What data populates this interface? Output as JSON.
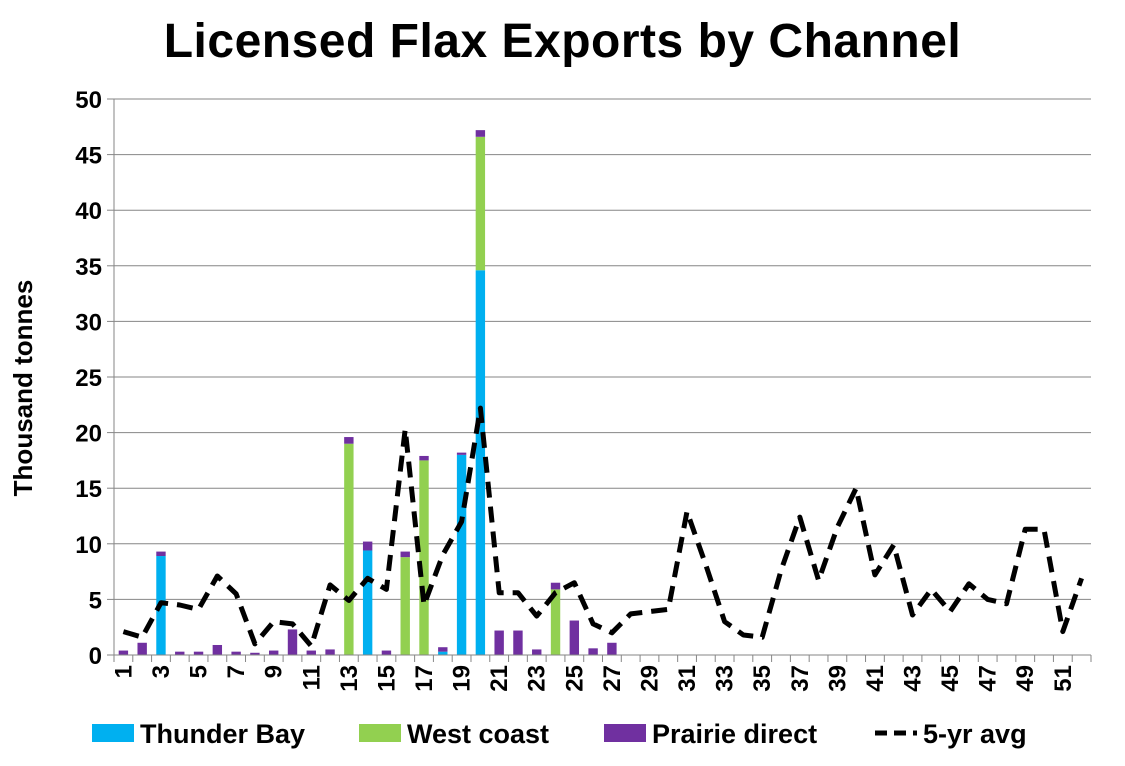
{
  "chart_data": {
    "type": "bar",
    "title": "Licensed Flax Exports by Channel",
    "xlabel": "",
    "ylabel": "Thousand tonnes",
    "ylim": [
      0,
      50
    ],
    "yticks": [
      0,
      5,
      10,
      15,
      20,
      25,
      30,
      35,
      40,
      45,
      50
    ],
    "grid": true,
    "legend_position": "bottom",
    "categories": [
      1,
      2,
      3,
      4,
      5,
      6,
      7,
      8,
      9,
      10,
      11,
      12,
      13,
      14,
      15,
      16,
      17,
      18,
      19,
      20,
      21,
      22,
      23,
      24,
      25,
      26,
      27,
      28,
      29,
      30,
      31,
      32,
      33,
      34,
      35,
      36,
      37,
      38,
      39,
      40,
      41,
      42,
      43,
      44,
      45,
      46,
      47,
      48,
      49,
      50,
      51,
      52
    ],
    "x_tick_labels": [
      "1",
      "3",
      "5",
      "7",
      "9",
      "11",
      "13",
      "15",
      "17",
      "19",
      "21",
      "23",
      "25",
      "27",
      "29",
      "31",
      "33",
      "35",
      "37",
      "39",
      "41",
      "43",
      "45",
      "47",
      "49",
      "51"
    ],
    "series": [
      {
        "name": "Thunder Bay",
        "type": "bar",
        "stack": "exports",
        "color": "#00B0F0",
        "values": [
          0,
          0,
          8.9,
          0,
          0,
          0,
          0,
          0,
          0,
          0,
          0,
          0,
          0,
          9.4,
          0,
          0,
          0,
          0.3,
          18.0,
          34.6,
          0,
          0,
          0,
          0,
          0,
          0,
          0,
          0,
          0,
          0,
          0,
          0,
          0,
          0,
          0,
          0,
          0,
          0,
          0,
          0,
          0,
          0,
          0,
          0,
          0,
          0,
          0,
          0,
          0,
          0,
          0,
          0
        ]
      },
      {
        "name": "West coast",
        "type": "bar",
        "stack": "exports",
        "color": "#92D050",
        "values": [
          0,
          0,
          0,
          0,
          0,
          0,
          0,
          0,
          0,
          0,
          0,
          0,
          19.0,
          0,
          0,
          8.8,
          17.5,
          0,
          0,
          12.0,
          0,
          0,
          0,
          5.9,
          0,
          0,
          0,
          0,
          0,
          0,
          0,
          0,
          0,
          0,
          0,
          0,
          0,
          0,
          0,
          0,
          0,
          0,
          0,
          0,
          0,
          0,
          0,
          0,
          0,
          0,
          0,
          0
        ]
      },
      {
        "name": "Prairie direct",
        "type": "bar",
        "stack": "exports",
        "color": "#7030A0",
        "values": [
          0.4,
          1.1,
          0.4,
          0.3,
          0.3,
          0.9,
          0.3,
          0.2,
          0.4,
          2.3,
          0.4,
          0.5,
          0.6,
          0.8,
          0.4,
          0.5,
          0.4,
          0.4,
          0.2,
          0.6,
          2.2,
          2.2,
          0.5,
          0.6,
          3.1,
          0.6,
          1.1,
          0,
          0,
          0,
          0,
          0,
          0,
          0,
          0,
          0,
          0,
          0,
          0,
          0,
          0,
          0,
          0,
          0,
          0,
          0,
          0,
          0,
          0,
          0,
          0,
          0
        ]
      },
      {
        "name": "5-yr avg",
        "type": "line",
        "style": "dashed",
        "color": "#000000",
        "values": [
          2.1,
          1.6,
          4.7,
          4.5,
          4.1,
          7.1,
          5.5,
          1.0,
          3.0,
          2.8,
          0.8,
          6.3,
          4.9,
          6.9,
          5.9,
          20.3,
          4.5,
          9.0,
          12.0,
          22.2,
          5.6,
          5.6,
          3.5,
          5.6,
          6.5,
          2.8,
          2.0,
          3.7,
          3.9,
          4.1,
          12.9,
          8.1,
          3.0,
          1.8,
          1.6,
          7.6,
          12.4,
          6.7,
          11.5,
          15.0,
          7.2,
          9.9,
          3.6,
          5.9,
          3.9,
          6.4,
          5.0,
          4.6,
          11.3,
          11.3,
          2.1,
          6.9
        ]
      }
    ]
  }
}
